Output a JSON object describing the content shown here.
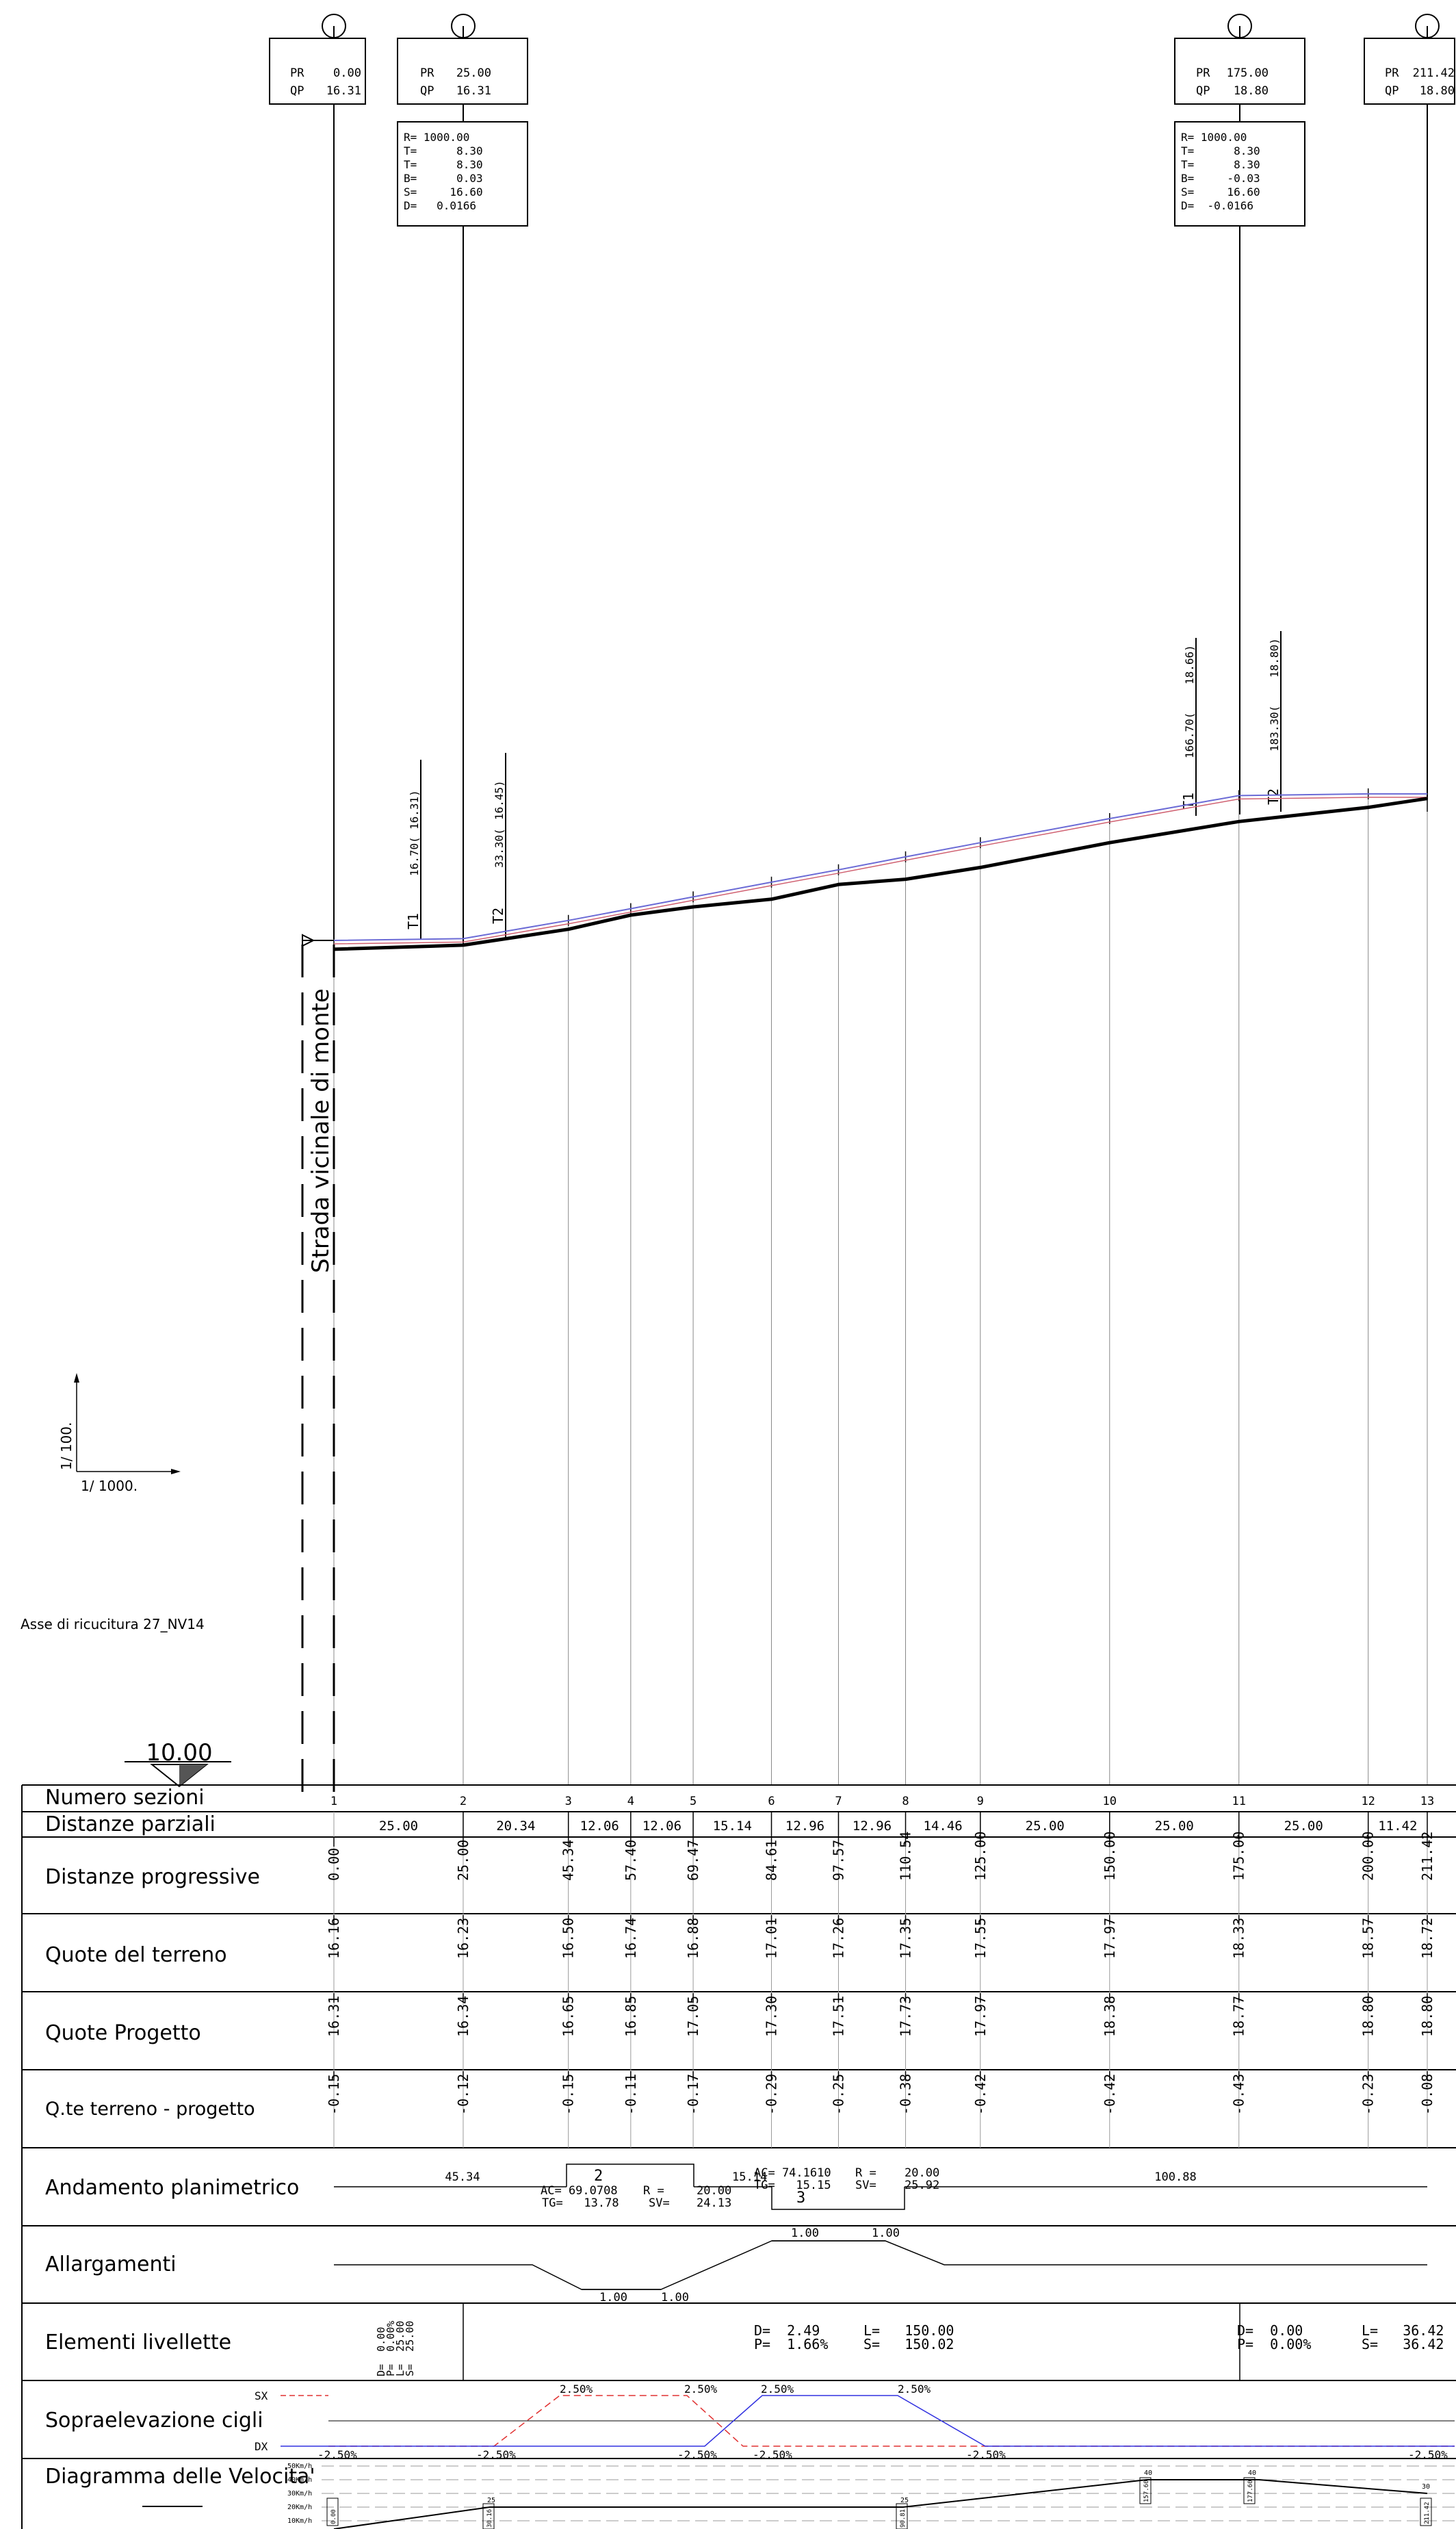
{
  "vertices": [
    {
      "pr": "0.00",
      "qp": "16.31"
    },
    {
      "pr": "25.00",
      "qp": "16.31"
    },
    {
      "pr": "175.00",
      "qp": "18.80"
    },
    {
      "pr": "211.42",
      "qp": "18.80"
    }
  ],
  "curves": [
    {
      "lines": [
        "R= 1000.00",
        "T=      8.30",
        "T=      8.30",
        "B=      0.03",
        "S=     16.60",
        "D=   0.0166"
      ],
      "t1": [
        "T1",
        "16.70(",
        "16.31)"
      ],
      "t2": [
        "T2",
        "33.30(",
        "16.45)"
      ]
    },
    {
      "lines": [
        "R= 1000.00",
        "T=      8.30",
        "T=      8.30",
        "B=     -0.03",
        "S=     16.60",
        "D=  -0.0166"
      ],
      "t1": [
        "T1",
        "166.70(",
        "18.66)"
      ],
      "t2": [
        "T2",
        "183.30(",
        "18.80)"
      ]
    }
  ],
  "labels": {
    "road": "Strada vicinale di monte",
    "scale_v": "1/ 100.",
    "scale_h": "1/ 1000.",
    "axis_name": "Asse di ricucitura 27_NV14",
    "datum": "10.00"
  },
  "rows": {
    "numero": "Numero sezioni",
    "parziali": "Distanze parziali",
    "progressive": "Distanze progressive",
    "terreno": "Quote del terreno",
    "progetto": "Quote Progetto",
    "diff": "Q.te terreno - progetto",
    "planim": "Andamento planimetrico",
    "allarg": "Allargamenti",
    "livellette": "Elementi livellette",
    "soprael": "Sopraelevazione cigli",
    "velocita": "Diagramma delle Velocita'"
  },
  "sections": [
    {
      "n": "1",
      "prog": "0.00",
      "terreno": "16.16",
      "progetto": "16.31",
      "diff": "-0.15"
    },
    {
      "n": "2",
      "prog": "25.00",
      "terreno": "16.23",
      "progetto": "16.34",
      "diff": "-0.12"
    },
    {
      "n": "3",
      "prog": "45.34",
      "terreno": "16.50",
      "progetto": "16.65",
      "diff": "-0.15"
    },
    {
      "n": "4",
      "prog": "57.40",
      "terreno": "16.74",
      "progetto": "16.85",
      "diff": "-0.11"
    },
    {
      "n": "5",
      "prog": "69.47",
      "terreno": "16.88",
      "progetto": "17.05",
      "diff": "-0.17"
    },
    {
      "n": "6",
      "prog": "84.61",
      "terreno": "17.01",
      "progetto": "17.30",
      "diff": "-0.29"
    },
    {
      "n": "7",
      "prog": "97.57",
      "terreno": "17.26",
      "progetto": "17.51",
      "diff": "-0.25"
    },
    {
      "n": "8",
      "prog": "110.54",
      "terreno": "17.35",
      "progetto": "17.73",
      "diff": "-0.38"
    },
    {
      "n": "9",
      "prog": "125.00",
      "terreno": "17.55",
      "progetto": "17.97",
      "diff": "-0.42"
    },
    {
      "n": "10",
      "prog": "150.00",
      "terreno": "17.97",
      "progetto": "18.38",
      "diff": "-0.42"
    },
    {
      "n": "11",
      "prog": "175.00",
      "terreno": "18.33",
      "progetto": "18.77",
      "diff": "-0.43"
    },
    {
      "n": "12",
      "prog": "200.00",
      "terreno": "18.57",
      "progetto": "18.80",
      "diff": "-0.23"
    },
    {
      "n": "13",
      "prog": "211.42",
      "terreno": "18.72",
      "progetto": "18.80",
      "diff": "-0.08"
    }
  ],
  "partials": [
    "25.00",
    "20.34",
    "12.06",
    "12.06",
    "15.14",
    "12.96",
    "12.96",
    "14.46",
    "25.00",
    "25.00",
    "25.00",
    "11.42"
  ],
  "planimetric": {
    "straight1": "45.34",
    "curve2": {
      "num": "2",
      "ac": "AC= 69.0708",
      "tg": "TG=   13.78",
      "r": "R =",
      "sv": "SV=",
      "r_val": "20.00",
      "sv_val": "24.13"
    },
    "mid": "15.14",
    "curve3": {
      "num": "3",
      "ac": "AC= 74.1610",
      "tg": "TG=   15.15",
      "r": "R =",
      "sv": "SV=",
      "r_val": "20.00",
      "sv_val": "25.92"
    },
    "straight2": "100.88"
  },
  "widening": {
    "a": "1.00",
    "b": "1.00",
    "c": "1.00",
    "d": "1.00"
  },
  "grades": [
    {
      "d": "D=  0.00",
      "p": "P=  0.00%",
      "l": "L=  25.00",
      "s": "S=  25.00"
    },
    {
      "d": "D=  2.49",
      "p": "P=  1.66%",
      "l": "L=   150.00",
      "s": "S=   150.02"
    },
    {
      "d": "D=  0.00",
      "p": "P=  0.00%",
      "l": "L=   36.42",
      "s": "S=   36.42"
    }
  ],
  "superelevation": {
    "sx": "SX",
    "dx": "DX",
    "values": [
      "2.50%",
      "2.50%",
      "2.50%",
      "2.50%",
      "-2.50%",
      "-2.50%",
      "-2.50%",
      "-2.50%",
      "-2.50%",
      "-2.50%"
    ]
  },
  "speed": {
    "levels": [
      "50Km/h",
      "40Km/h",
      "30Km/h",
      "20Km/h",
      "10Km/h"
    ],
    "marks": [
      "25",
      "25",
      "40",
      "40",
      "30"
    ],
    "boxes": [
      "0.00",
      "30.16",
      "90.81",
      "157.60",
      "177.60",
      "211.42"
    ]
  },
  "colors": {
    "terrain": "#000000",
    "design": "#6b6bd6",
    "design_alt": "#d06070",
    "sx_line": "#e03030",
    "dx_line": "#3030e0",
    "grid": "#888888"
  }
}
